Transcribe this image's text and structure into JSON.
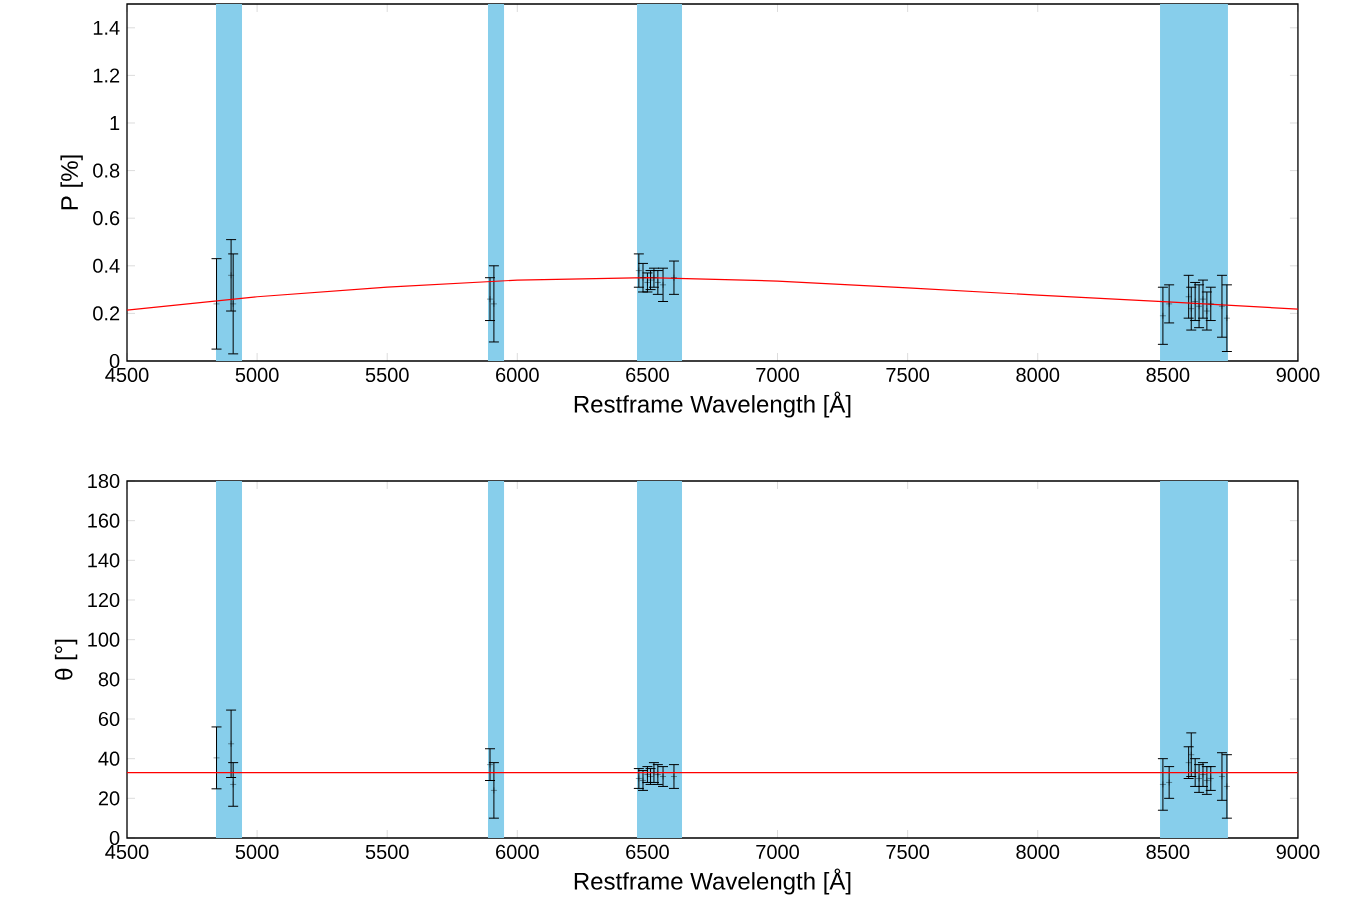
{
  "chart_data": [
    {
      "type": "scatter",
      "xlabel": "Restframe Wavelength [Å]",
      "ylabel": "P [%]",
      "xlim": [
        4500,
        9000
      ],
      "xticks": [
        4500,
        5000,
        5500,
        6000,
        6500,
        7000,
        7500,
        8000,
        8500,
        9000
      ],
      "ylim": [
        0,
        1.5
      ],
      "yticks": [
        0,
        0.2,
        0.4,
        0.6,
        0.8,
        1,
        1.2,
        1.4
      ],
      "grid": false,
      "x": [
        4844,
        4900,
        4908,
        5895,
        5910,
        6467,
        6483,
        6500,
        6512,
        6525,
        6540,
        6560,
        6602,
        8481,
        8505,
        8580,
        8590,
        8605,
        8620,
        8635,
        8650,
        8665,
        8708,
        8727
      ],
      "bands": [
        {
          "axis": "x",
          "from": 4842,
          "to": 4942,
          "color": "#87ceeb"
        },
        {
          "axis": "x",
          "from": 5887,
          "to": 5949,
          "color": "#87ceeb"
        },
        {
          "axis": "x",
          "from": 6460,
          "to": 6633,
          "color": "#87ceeb"
        },
        {
          "axis": "x",
          "from": 8470,
          "to": 8731,
          "color": "#87ceeb"
        }
      ],
      "series": [
        {
          "type": "scatter",
          "color": "#000000",
          "marker": "cross",
          "values": [
            0.24,
            0.36,
            0.24,
            0.26,
            0.24,
            0.38,
            0.35,
            0.33,
            0.34,
            0.35,
            0.33,
            0.32,
            0.35,
            0.19,
            0.24,
            0.27,
            0.22,
            0.25,
            0.23,
            0.26,
            0.21,
            0.24,
            0.23,
            0.18
          ],
          "errors": [
            0.19,
            0.15,
            0.21,
            0.09,
            0.16,
            0.07,
            0.06,
            0.04,
            0.04,
            0.04,
            0.05,
            0.07,
            0.07,
            0.12,
            0.08,
            0.09,
            0.09,
            0.08,
            0.09,
            0.08,
            0.08,
            0.07,
            0.13,
            0.14
          ]
        },
        {
          "type": "line",
          "color": "#ff0000",
          "marker": "none",
          "x": [
            4500,
            5000,
            5500,
            6000,
            6500,
            7000,
            7500,
            8000,
            8500,
            9000
          ],
          "values": [
            0.214,
            0.27,
            0.31,
            0.34,
            0.35,
            0.336,
            0.307,
            0.277,
            0.248,
            0.218
          ]
        }
      ]
    },
    {
      "type": "scatter",
      "xlabel": "Restframe Wavelength [Å]",
      "ylabel": "θ [°]",
      "xlim": [
        4500,
        9000
      ],
      "xticks": [
        4500,
        5000,
        5500,
        6000,
        6500,
        7000,
        7500,
        8000,
        8500,
        9000
      ],
      "ylim": [
        0,
        180
      ],
      "yticks": [
        0,
        20,
        40,
        60,
        80,
        100,
        120,
        140,
        160,
        180
      ],
      "grid": false,
      "x": [
        4844,
        4900,
        4908,
        5895,
        5910,
        6467,
        6483,
        6500,
        6512,
        6525,
        6540,
        6560,
        6602,
        8481,
        8505,
        8580,
        8590,
        8605,
        8620,
        8635,
        8650,
        8665,
        8708,
        8727
      ],
      "bands": [
        {
          "axis": "x",
          "from": 4842,
          "to": 4942,
          "color": "#87ceeb"
        },
        {
          "axis": "x",
          "from": 5887,
          "to": 5949,
          "color": "#87ceeb"
        },
        {
          "axis": "x",
          "from": 6460,
          "to": 6633,
          "color": "#87ceeb"
        },
        {
          "axis": "x",
          "from": 8470,
          "to": 8731,
          "color": "#87ceeb"
        }
      ],
      "series": [
        {
          "type": "scatter",
          "color": "#000000",
          "marker": "cross",
          "values": [
            40.4,
            47.5,
            27,
            37,
            24,
            30,
            29,
            32,
            31,
            33,
            32,
            31,
            31,
            27,
            28,
            38,
            42,
            33,
            30,
            32,
            29,
            30,
            31,
            26
          ],
          "errors": [
            15.6,
            17,
            11,
            8,
            14,
            5,
            5,
            4,
            4,
            5,
            5,
            5,
            6,
            13,
            8,
            8,
            11,
            7,
            7,
            6,
            7,
            6,
            12,
            16
          ]
        },
        {
          "type": "line",
          "color": "#ff0000",
          "marker": "none",
          "x": [
            4500,
            9000
          ],
          "values": [
            33,
            33
          ]
        }
      ]
    }
  ]
}
